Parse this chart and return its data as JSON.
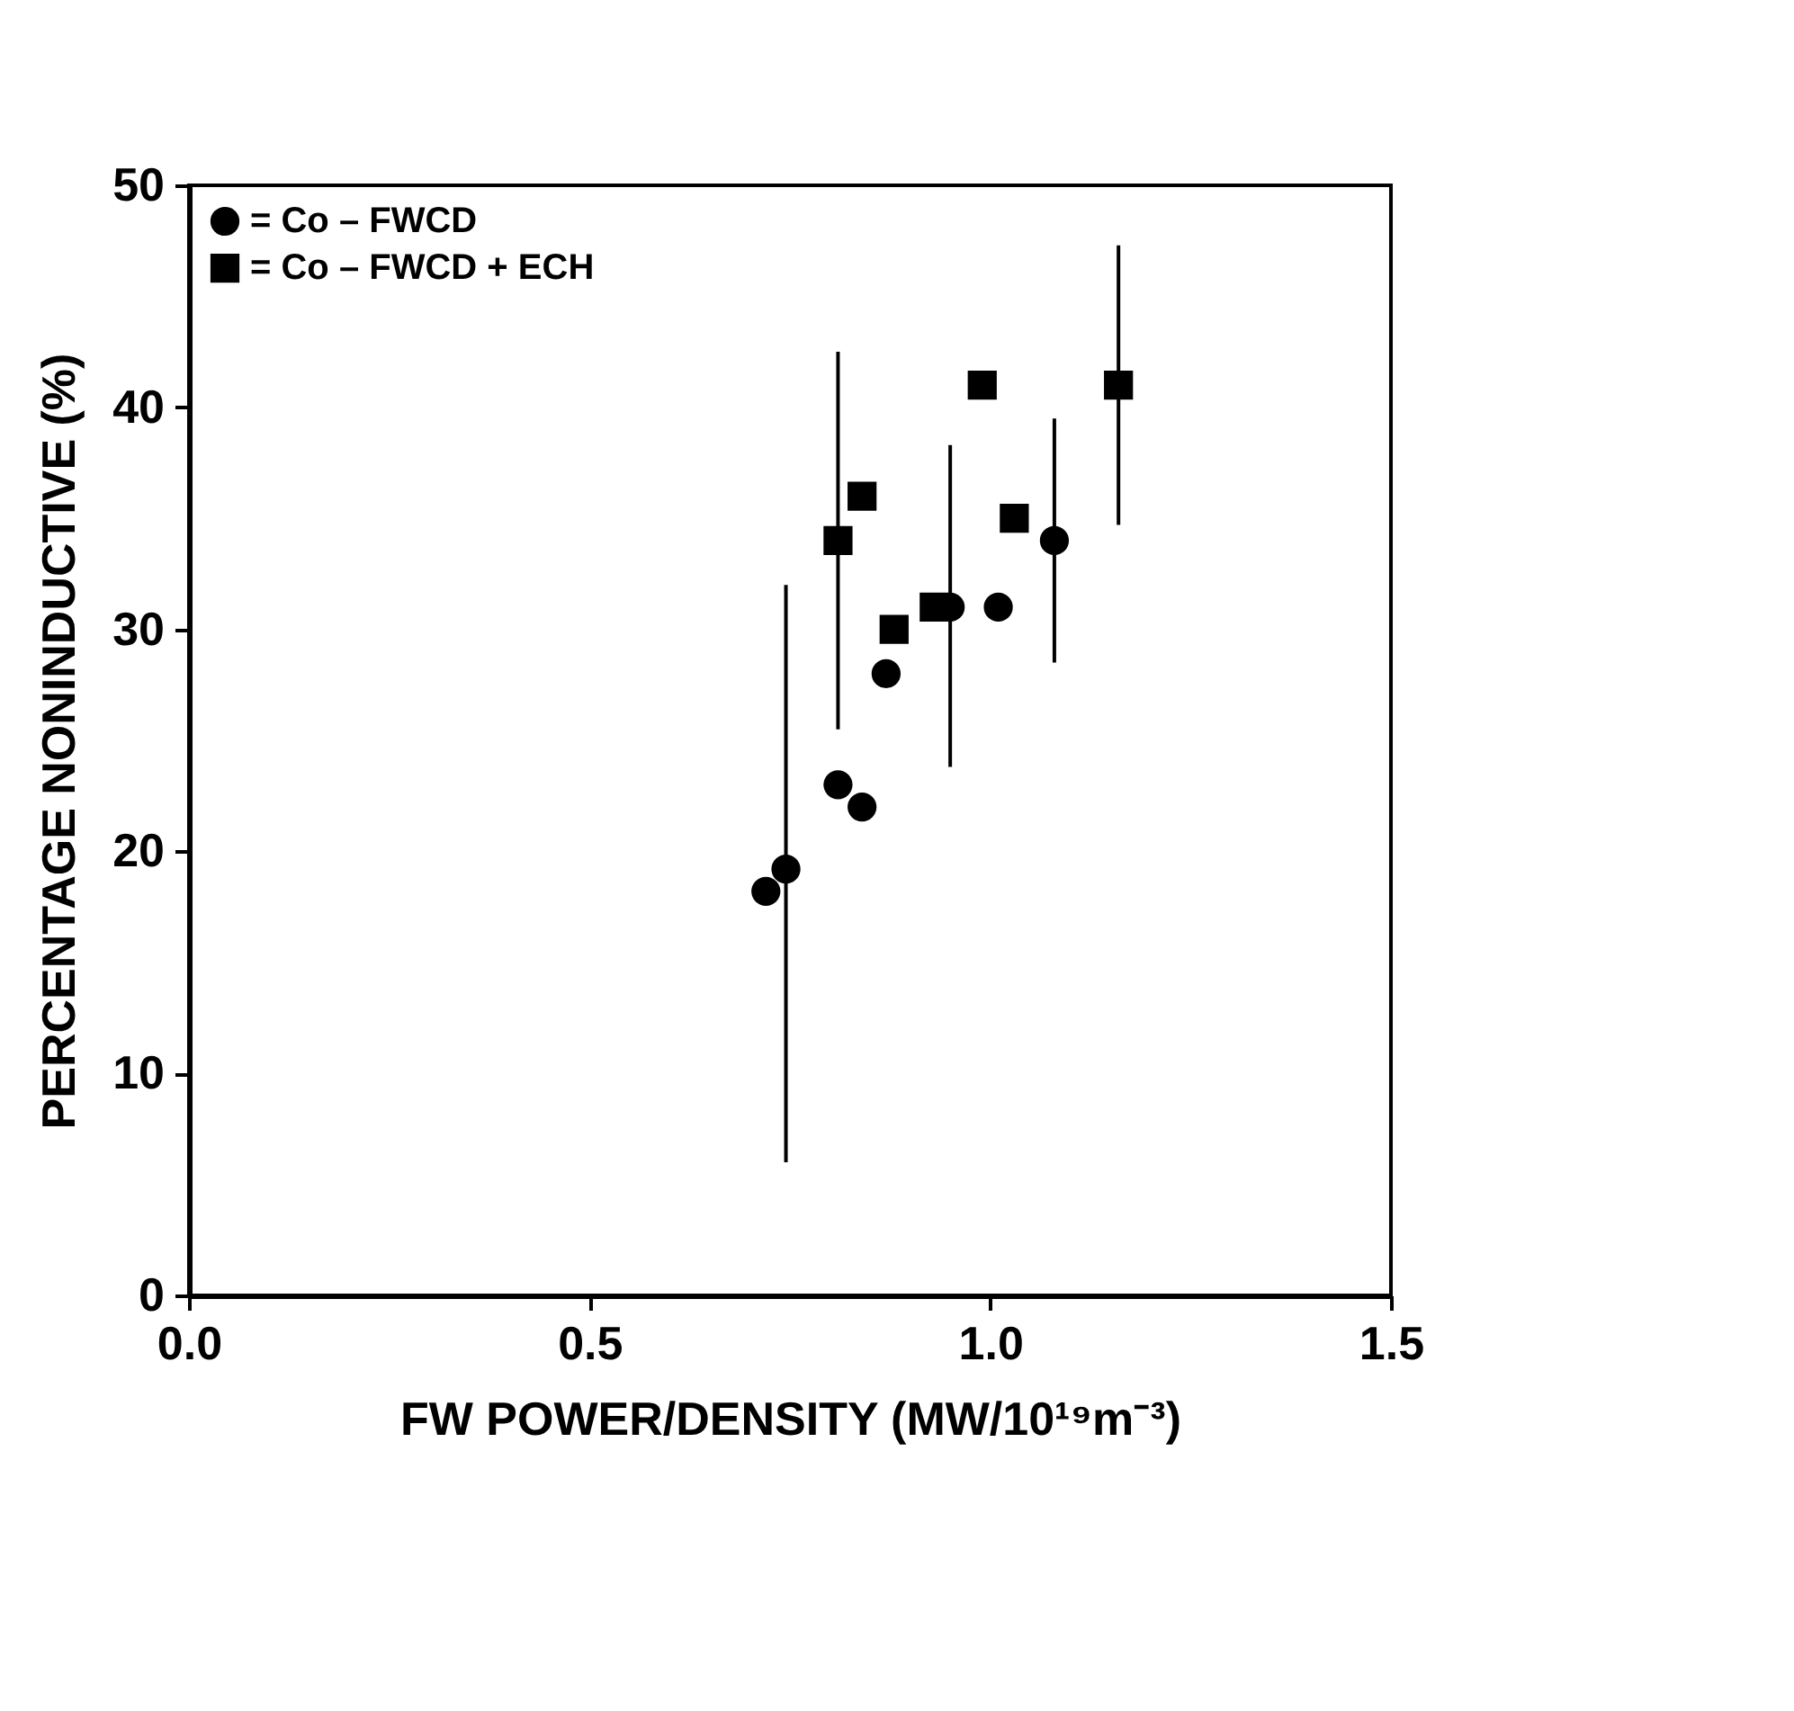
{
  "chart_data": {
    "type": "scatter",
    "xlabel": "FW POWER/DENSITY (MW/10¹⁹m⁻³)",
    "ylabel": "PERCENTAGE NONINDUCTIVE (%)",
    "xlim": [
      0,
      1.5
    ],
    "xticks": [
      {
        "value": 0,
        "label": "0.0"
      },
      0.5,
      {
        "value": 1,
        "label": "1.0"
      },
      1.5
    ],
    "ylim": [
      0,
      50
    ],
    "yticks": [
      0,
      10,
      20,
      30,
      40,
      50
    ],
    "grid": false,
    "legend": "top left",
    "series": [
      {
        "name": "= Co – FWCD",
        "color": "#000000",
        "marker": "circle",
        "x": [
          0.72,
          0.745,
          0.81,
          0.84,
          0.87,
          0.95,
          1.01,
          1.08
        ],
        "values": [
          18.2,
          19.2,
          23,
          22,
          28,
          31,
          31,
          34
        ],
        "errors": [
          null,
          [
            6,
            32
          ],
          null,
          null,
          null,
          [
            23.8,
            38.3
          ],
          null,
          [
            28.5,
            39.5
          ]
        ]
      },
      {
        "name": "= Co – FWCD + ECH",
        "color": "#000000",
        "marker": "square",
        "x": [
          0.81,
          0.84,
          0.88,
          0.93,
          0.99,
          1.03,
          1.16
        ],
        "values": [
          34,
          36,
          30,
          31,
          41,
          35,
          41
        ],
        "errors": [
          [
            25.5,
            42.5
          ],
          null,
          null,
          null,
          null,
          null,
          [
            34.7,
            47.3
          ]
        ]
      }
    ]
  }
}
